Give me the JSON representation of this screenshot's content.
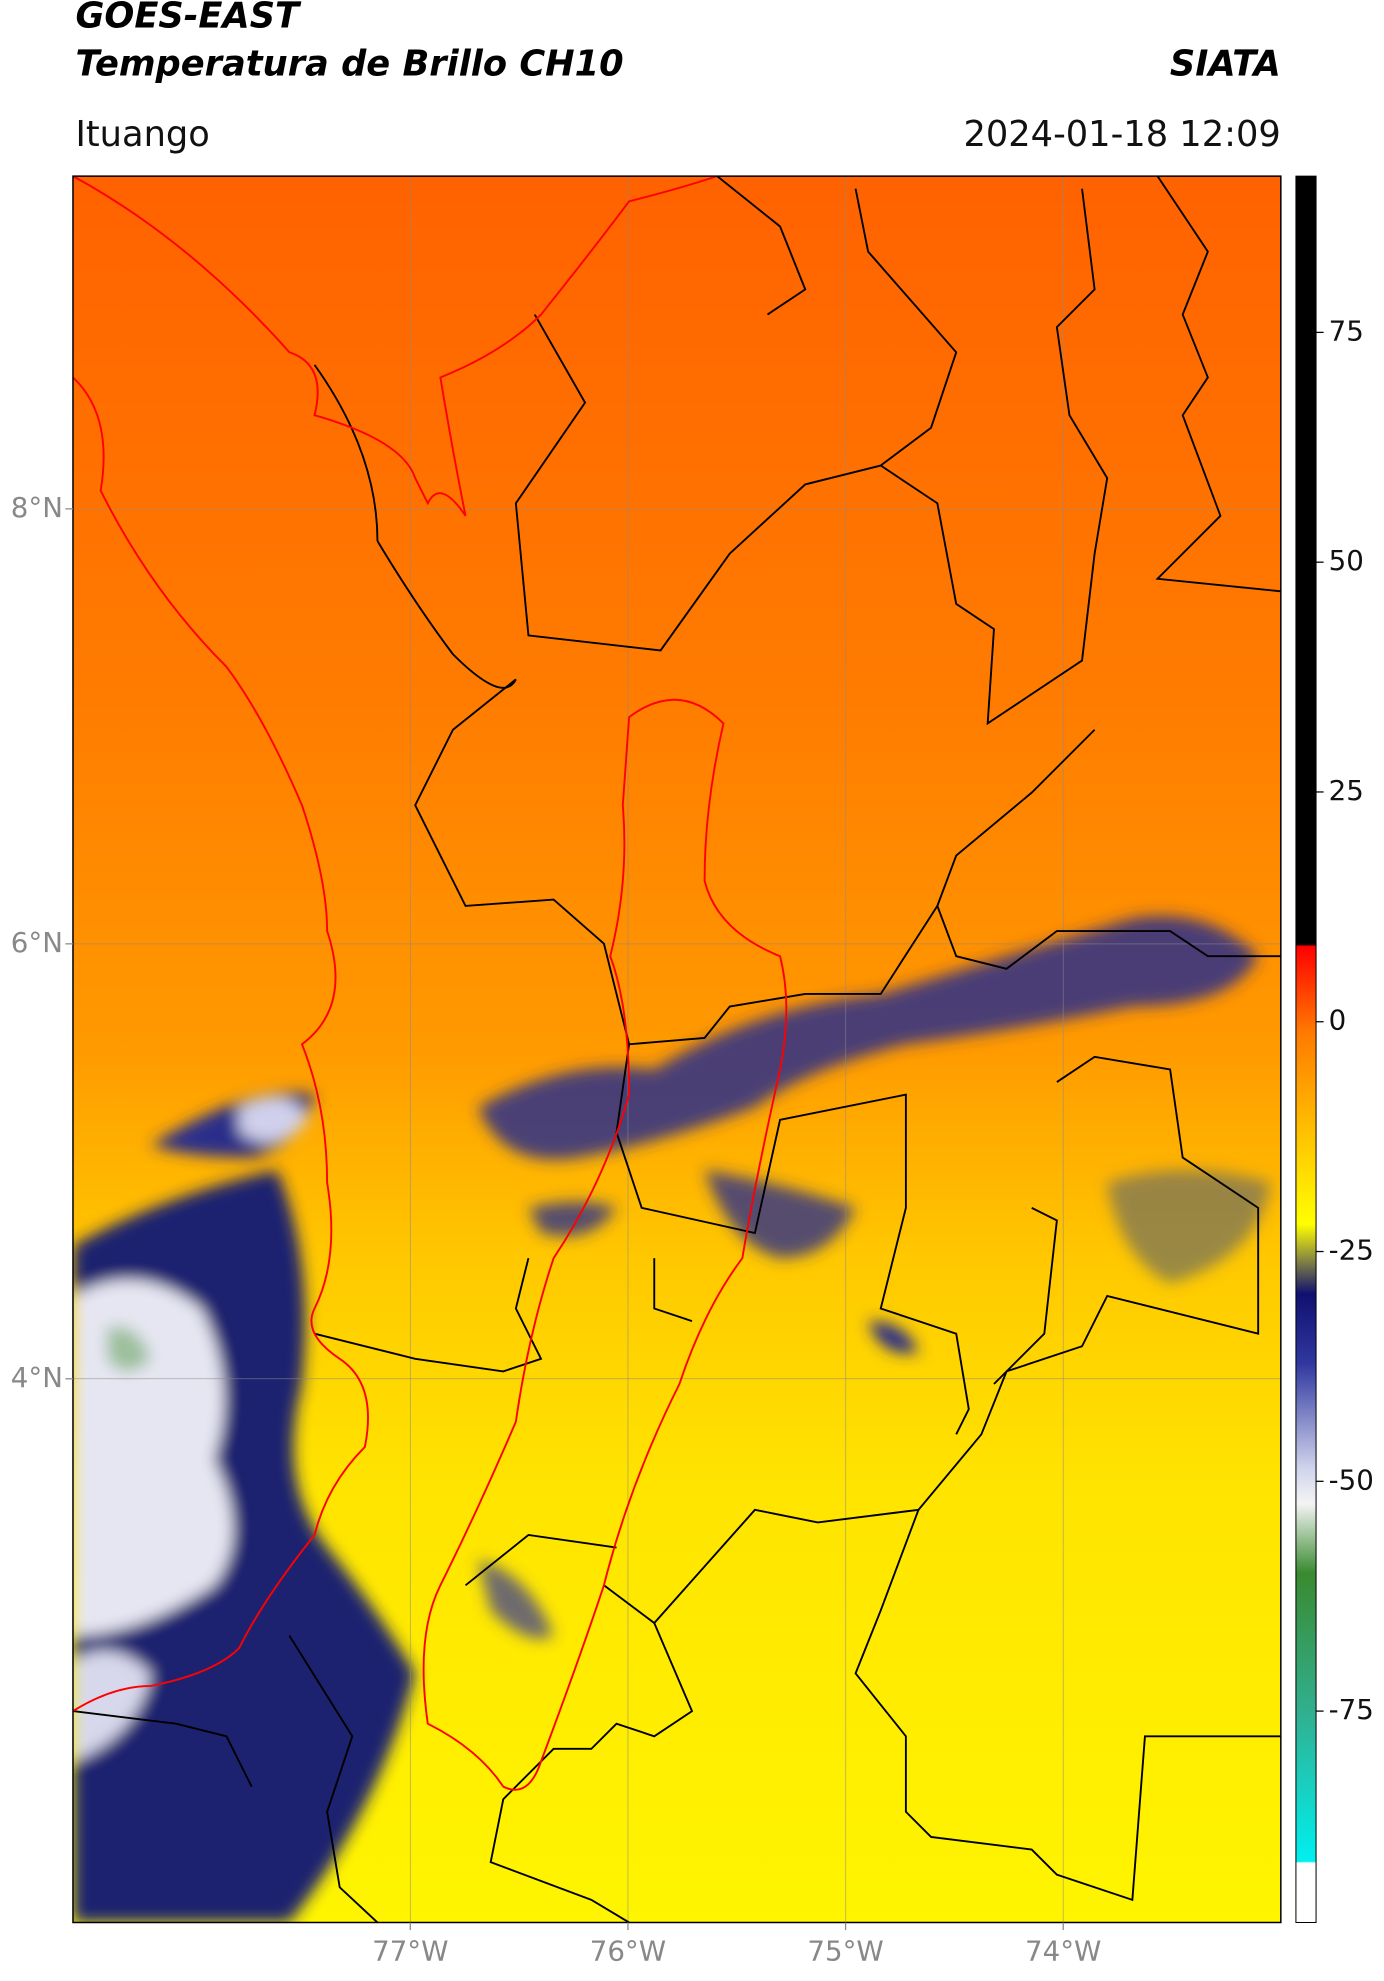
{
  "header": {
    "title": "GOES-EAST",
    "subtitle": "Temperatura de Brillo CH10",
    "agency": "SIATA",
    "location": "Ituango",
    "datetime": "2024-01-18 12:09"
  },
  "map": {
    "xlim": [
      -78.55,
      -73.0
    ],
    "ylim": [
      1.5,
      9.53
    ],
    "xticks": [
      {
        "value": -77,
        "label": "77°W"
      },
      {
        "value": -76,
        "label": "76°W"
      },
      {
        "value": -75,
        "label": "75°W"
      },
      {
        "value": -74,
        "label": "74°W"
      }
    ],
    "yticks": [
      {
        "value": 8,
        "label": "8°N"
      },
      {
        "value": 6,
        "label": "6°N"
      },
      {
        "value": 4,
        "label": "4°N"
      }
    ],
    "grid": true
  },
  "colorbar": {
    "clim": [
      -98,
      92
    ],
    "ticks": [
      75,
      50,
      25,
      0,
      -25,
      -50,
      -75
    ]
  }
}
